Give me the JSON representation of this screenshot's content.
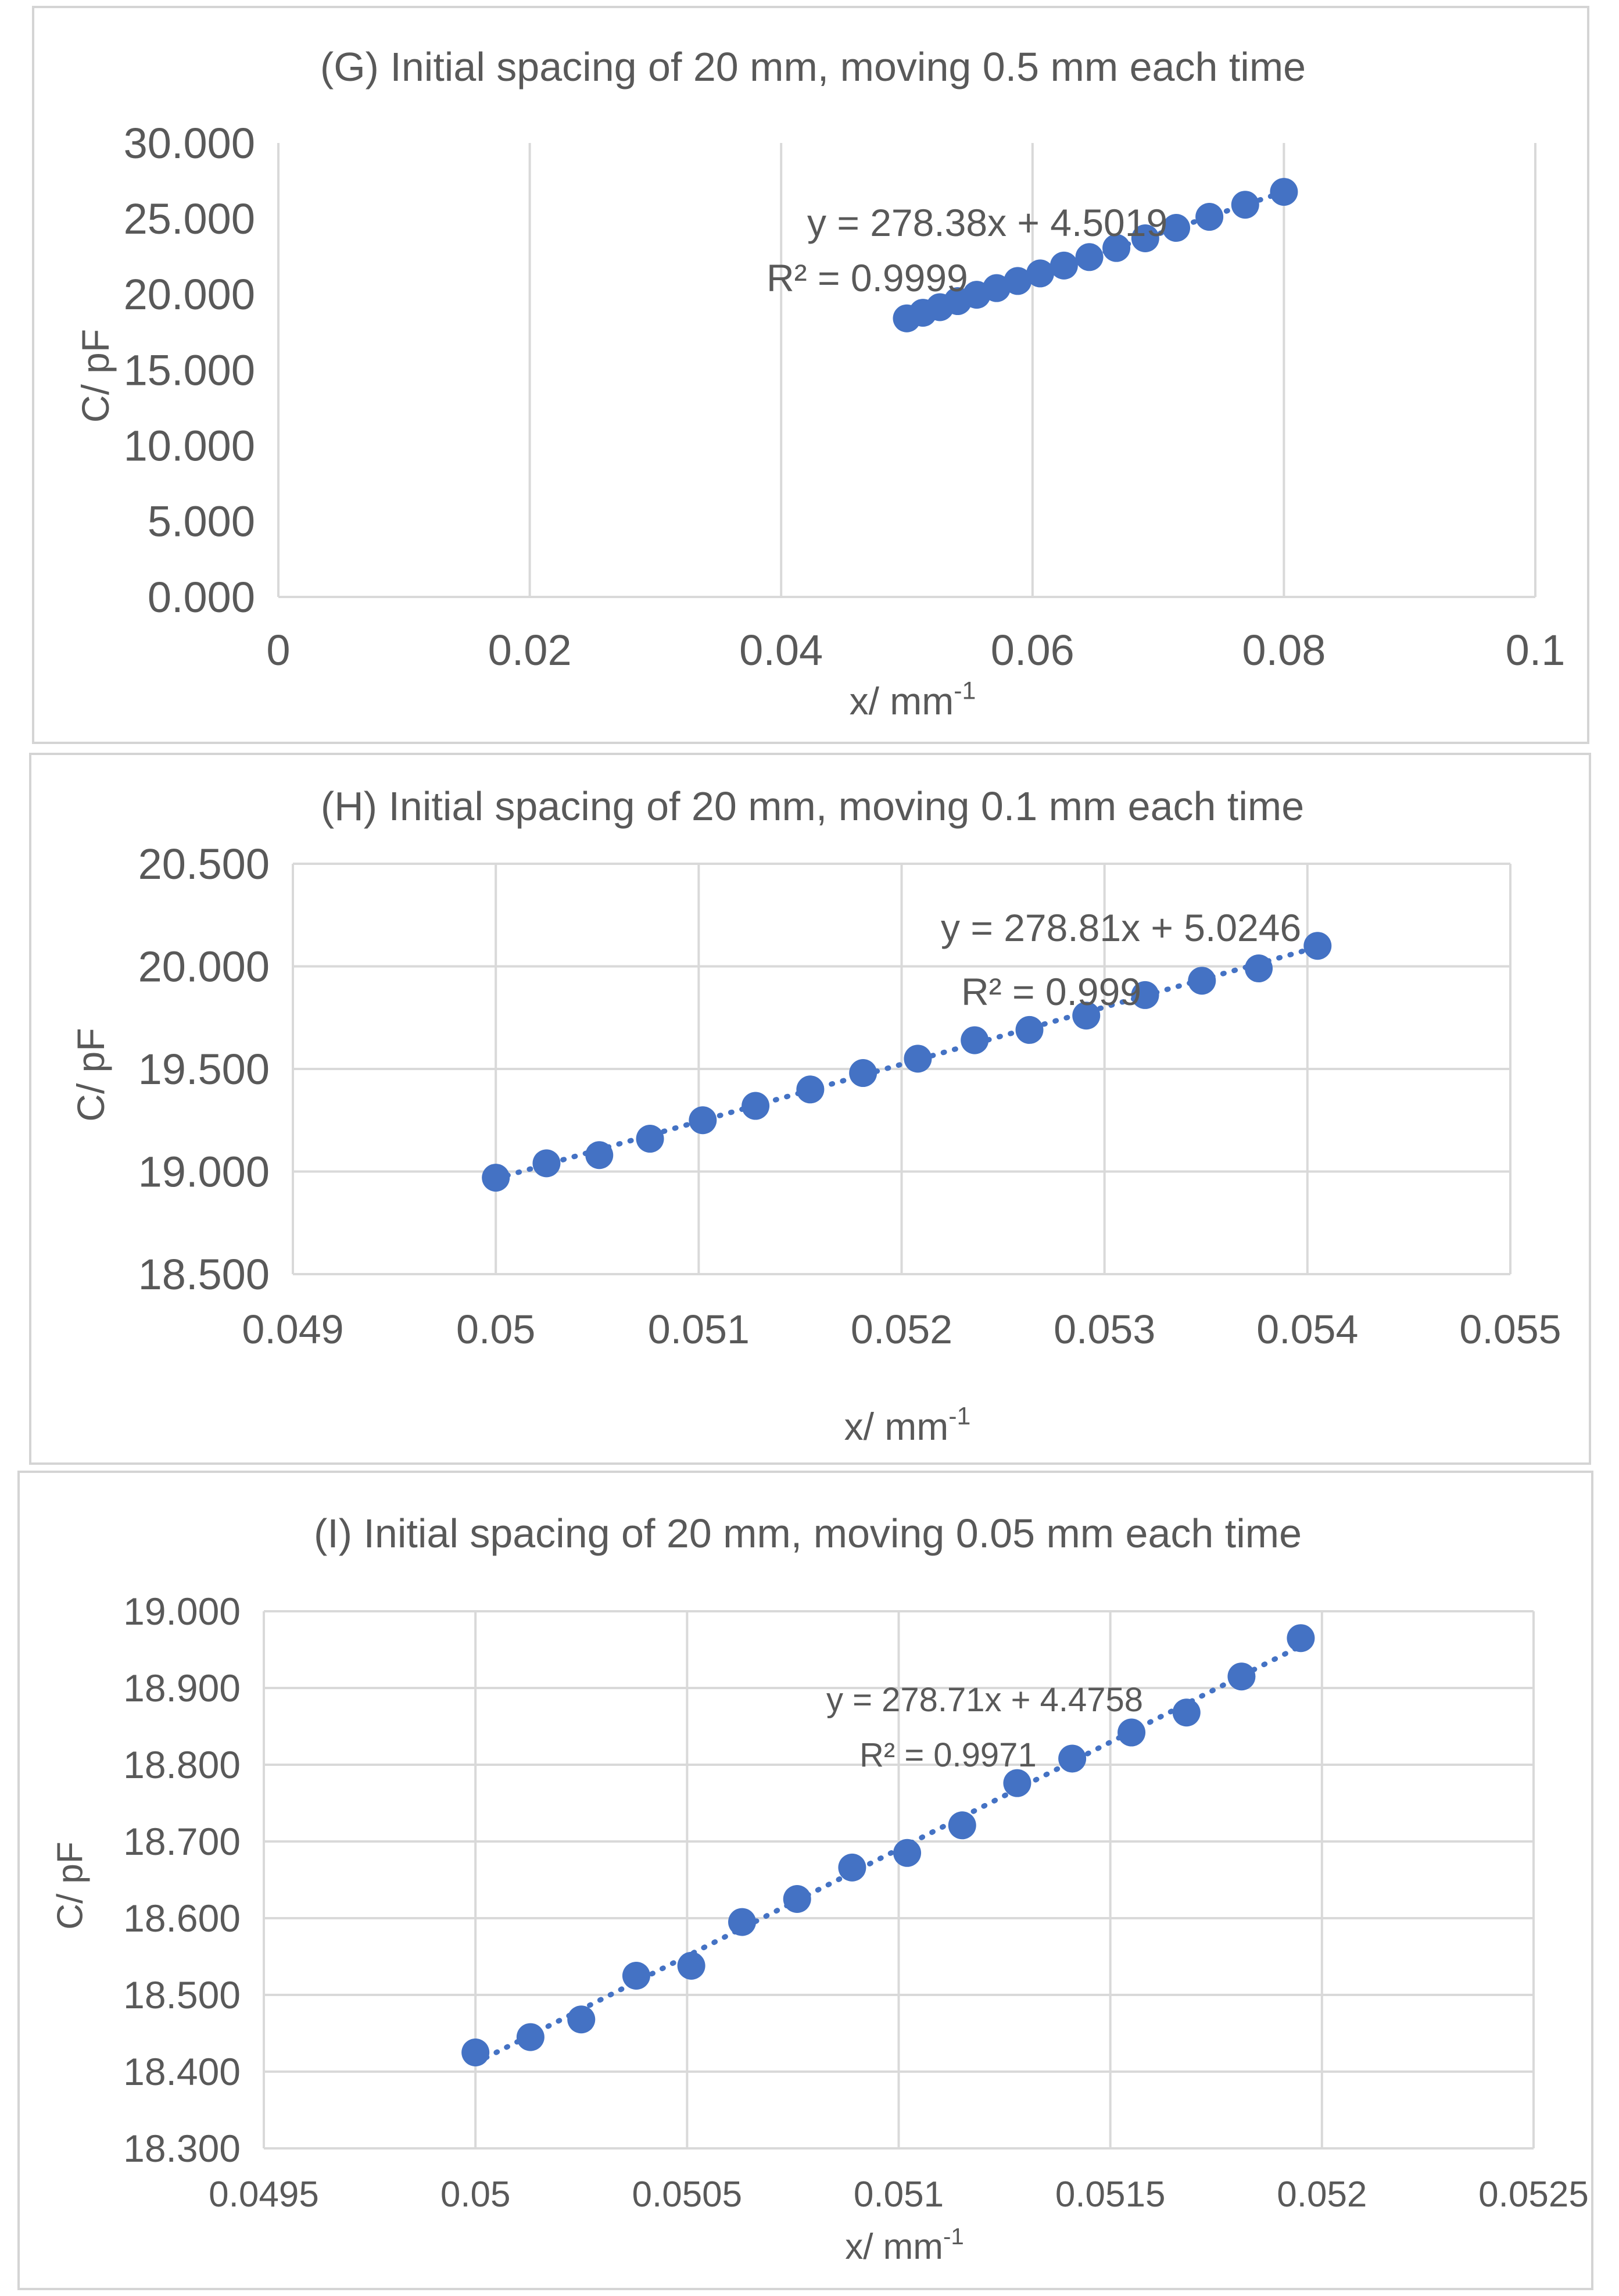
{
  "colors": {
    "marker": "#4472C4",
    "trendline": "#4472C4",
    "gridline": "#d9d9d9",
    "axis_text": "#595959",
    "panel_border": "#d4d4d4"
  },
  "chart_data": [
    {
      "type": "scatter",
      "title": "(G) Initial spacing of 20 mm, moving 0.5 mm each time",
      "xlabel": "x/ mm",
      "xlabel_sup": "-1",
      "ylabel": "C/ pF",
      "xlim": [
        0,
        0.1
      ],
      "ylim": [
        0,
        30
      ],
      "x_ticks": [
        "0",
        "0.02",
        "0.04",
        "0.06",
        "0.08",
        "0.1"
      ],
      "y_ticks": [
        "0.000",
        "5.000",
        "10.000",
        "15.000",
        "20.000",
        "25.000",
        "30.000"
      ],
      "grid": "vertical",
      "trendline": {
        "type": "linear",
        "slope": 278.38,
        "intercept": 4.5019,
        "equation": "y = 278.38x + 4.5019",
        "r2_label": "R² = 0.9999",
        "x_range": [
          0.05,
          0.08
        ]
      },
      "x": [
        0.05,
        0.05128,
        0.05263,
        0.05405,
        0.05556,
        0.05714,
        0.05882,
        0.06061,
        0.0625,
        0.06452,
        0.06667,
        0.06897,
        0.07143,
        0.07407,
        0.07692,
        0.08
      ],
      "y": [
        18.41,
        18.78,
        19.15,
        19.55,
        19.97,
        20.41,
        20.88,
        21.38,
        21.9,
        22.46,
        23.06,
        23.7,
        24.39,
        25.12,
        25.92,
        26.77
      ]
    },
    {
      "type": "scatter",
      "title": "(H) Initial spacing of 20 mm, moving 0.1 mm each time",
      "xlabel": "x/ mm",
      "xlabel_sup": "-1",
      "ylabel": "C/ pF",
      "xlim": [
        0.049,
        0.055
      ],
      "ylim": [
        18.5,
        20.5
      ],
      "x_ticks": [
        "0.049",
        "0.05",
        "0.051",
        "0.052",
        "0.053",
        "0.054",
        "0.055"
      ],
      "y_ticks": [
        "18.500",
        "19.000",
        "19.500",
        "20.000",
        "20.500"
      ],
      "grid": "both",
      "trendline": {
        "type": "linear",
        "slope": 278.81,
        "intercept": 5.0246,
        "equation": "y = 278.81x + 5.0246",
        "r2_label": "R² = 0.999",
        "x_range": [
          0.05,
          0.05405
        ]
      },
      "x": [
        0.05,
        0.05025,
        0.05051,
        0.05076,
        0.05102,
        0.05128,
        0.05155,
        0.05181,
        0.05208,
        0.05236,
        0.05263,
        0.05291,
        0.0532,
        0.05348,
        0.05376,
        0.05405
      ],
      "y": [
        18.97,
        19.04,
        19.08,
        19.16,
        19.25,
        19.32,
        19.4,
        19.48,
        19.55,
        19.64,
        19.69,
        19.76,
        19.86,
        19.93,
        19.99,
        20.1
      ]
    },
    {
      "type": "scatter",
      "title": "(I) Initial spacing of 20 mm, moving 0.05 mm each time",
      "xlabel": "x/ mm",
      "xlabel_sup": "-1",
      "ylabel": "C/ pF",
      "xlim": [
        0.0495,
        0.0525
      ],
      "ylim": [
        18.3,
        19.0
      ],
      "x_ticks": [
        "0.0495",
        "0.05",
        "0.0505",
        "0.051",
        "0.0515",
        "0.052",
        "0.0525"
      ],
      "y_ticks": [
        "18.300",
        "18.400",
        "18.500",
        "18.600",
        "18.700",
        "18.800",
        "18.900",
        "19.000"
      ],
      "grid": "both",
      "trendline": {
        "type": "linear",
        "slope": 278.71,
        "intercept": 4.4758,
        "equation": "y = 278.71x + 4.4758",
        "r2_label": "R² = 0.9971",
        "x_range": [
          0.05,
          0.05195
        ]
      },
      "x": [
        0.05,
        0.05013,
        0.05025,
        0.05038,
        0.05051,
        0.05063,
        0.05076,
        0.05089,
        0.05102,
        0.05115,
        0.05128,
        0.05141,
        0.05155,
        0.05168,
        0.05181,
        0.05195
      ],
      "y": [
        18.425,
        18.445,
        18.468,
        18.525,
        18.538,
        18.595,
        18.625,
        18.666,
        18.685,
        18.721,
        18.776,
        18.808,
        18.842,
        18.868,
        18.915,
        18.965
      ]
    }
  ]
}
